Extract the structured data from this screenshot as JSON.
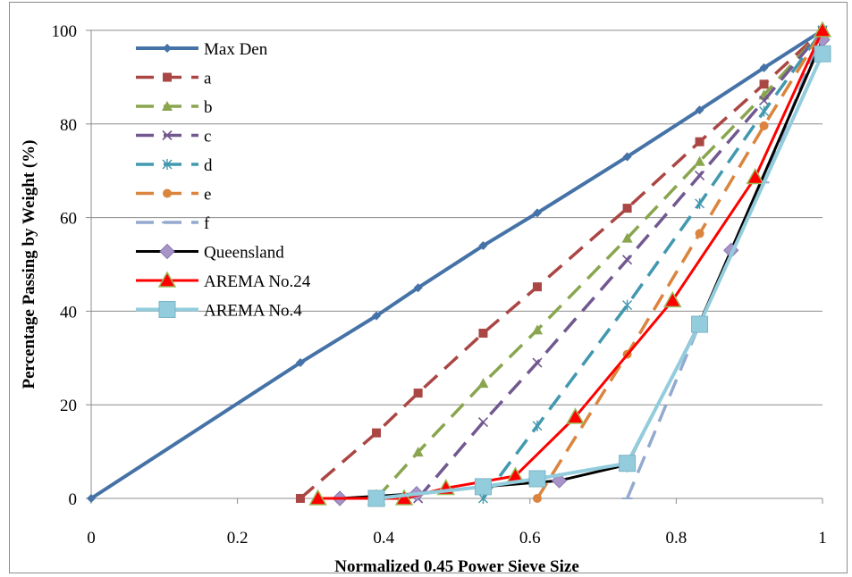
{
  "chart_data": {
    "type": "line",
    "xlabel": "Normalized 0.45 Power Sieve Size",
    "ylabel": "Percentage Passing by Weight (%)",
    "xlim": [
      0,
      1
    ],
    "ylim": [
      0,
      100
    ],
    "x_ticks": [
      "0",
      "0.2",
      "0.4",
      "0.6",
      "0.8",
      "1"
    ],
    "y_ticks": [
      "0",
      "20",
      "40",
      "60",
      "80",
      "100"
    ],
    "grid": "horizontal",
    "legend_position": "top-left",
    "series": [
      {
        "name": "Max Den",
        "color": "#4572a7",
        "style": "solid",
        "marker": "diamond",
        "x": [
          0,
          0.286,
          0.39,
          0.447,
          0.536,
          0.61,
          0.733,
          0.832,
          0.92,
          1
        ],
        "y": [
          0,
          29,
          39,
          45,
          54,
          61,
          73,
          83,
          92,
          100
        ]
      },
      {
        "name": "a",
        "color": "#aa4643",
        "style": "dashed",
        "marker": "square",
        "x": [
          0.286,
          0.39,
          0.447,
          0.536,
          0.61,
          0.733,
          0.832,
          0.92,
          1
        ],
        "y": [
          0,
          14,
          22.5,
          35.3,
          45.2,
          62,
          76.2,
          88.5,
          100
        ]
      },
      {
        "name": "b",
        "color": "#89a54e",
        "style": "dashed",
        "marker": "triangle",
        "x": [
          0.39,
          0.447,
          0.536,
          0.61,
          0.733,
          0.832,
          0.92,
          1
        ],
        "y": [
          0,
          9.9,
          24.6,
          36,
          55.6,
          72,
          86.2,
          100
        ]
      },
      {
        "name": "c",
        "color": "#71588f",
        "style": "dashed",
        "marker": "x",
        "x": [
          0.447,
          0.536,
          0.61,
          0.733,
          0.832,
          0.92,
          1
        ],
        "y": [
          0,
          16.3,
          29,
          51,
          69,
          85,
          100
        ]
      },
      {
        "name": "d",
        "color": "#4198af",
        "style": "dashed",
        "marker": "star",
        "x": [
          0.536,
          0.61,
          0.733,
          0.832,
          0.92,
          1
        ],
        "y": [
          0,
          15.5,
          41.3,
          63,
          82.7,
          100
        ]
      },
      {
        "name": "e",
        "color": "#db843d",
        "style": "dashed",
        "marker": "circle",
        "x": [
          0.61,
          0.733,
          0.832,
          0.92,
          1
        ],
        "y": [
          0,
          30.8,
          56.6,
          79.6,
          100
        ]
      },
      {
        "name": "f",
        "color": "#93a9cf",
        "style": "dashed",
        "marker": "plus",
        "x": [
          0.733,
          0.832,
          0.92,
          1
        ],
        "y": [
          0,
          37.3,
          67.5,
          100
        ]
      },
      {
        "name": "Queensland",
        "color": "#000000",
        "style": "solid",
        "marker": "diamond-purple",
        "x": [
          0.34,
          0.445,
          0.536,
          0.64,
          0.733,
          0.832,
          0.875,
          1
        ],
        "y": [
          0,
          1,
          2.5,
          3.8,
          7.2,
          37.5,
          53,
          98
        ]
      },
      {
        "name": "AREMA No.24",
        "color": "#ff0000",
        "style": "solid",
        "marker": "red-triangle",
        "x": [
          0.31,
          0.39,
          0.428,
          0.485,
          0.58,
          0.662,
          0.795,
          0.908,
          1
        ],
        "y": [
          0,
          0,
          0,
          2.2,
          4.8,
          17.4,
          42.3,
          68.6,
          100
        ]
      },
      {
        "name": "AREMA No.4",
        "color": "#93cddd",
        "style": "solid",
        "marker": "big-square",
        "x": [
          0.39,
          0.536,
          0.61,
          0.733,
          0.832,
          1
        ],
        "y": [
          0,
          2.5,
          4.2,
          7.5,
          37.2,
          95
        ]
      }
    ]
  }
}
